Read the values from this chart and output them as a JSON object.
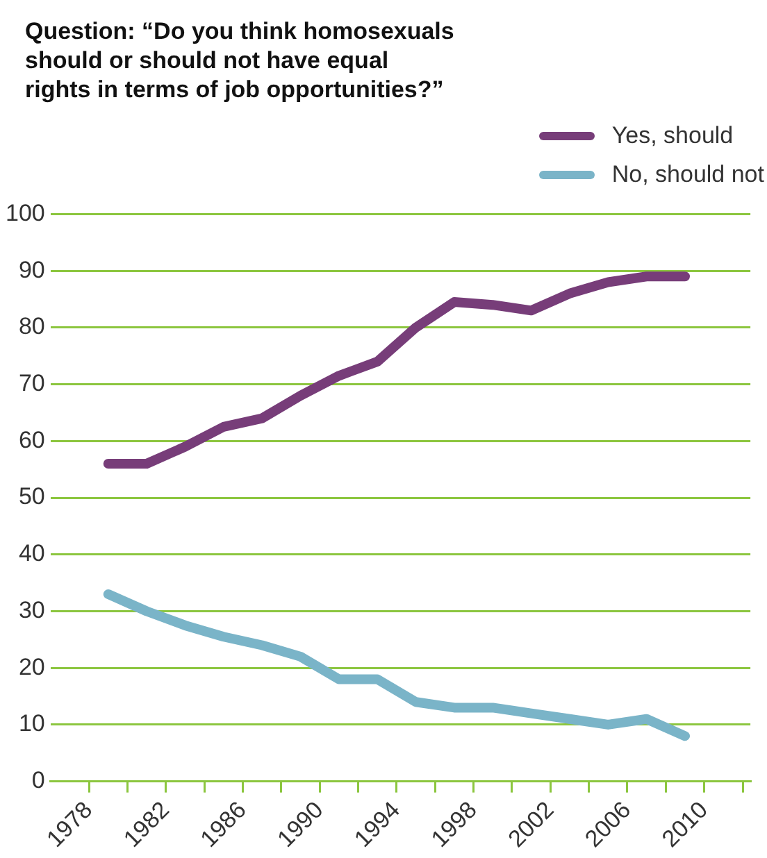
{
  "chart_data": {
    "type": "line",
    "title": "Question: “Do you think homosexuals should or should not have equal rights in terms of job opportunities?”",
    "x": [
      1979,
      1981,
      1983,
      1985,
      1987,
      1989,
      1991,
      1993,
      1995,
      1997,
      1999,
      2001,
      2003,
      2005,
      2007,
      2009
    ],
    "series": [
      {
        "name": "Yes, should",
        "color": "#773d79",
        "values": [
          56,
          56,
          59,
          62.5,
          64,
          68,
          71.5,
          74,
          80,
          84.5,
          84,
          83,
          86,
          88,
          89,
          89
        ]
      },
      {
        "name": "No, should not",
        "color": "#7ab4c8",
        "values": [
          33,
          30,
          27.5,
          25.5,
          24,
          22,
          18,
          18,
          14,
          13,
          13,
          12,
          11,
          10,
          11,
          8
        ]
      }
    ],
    "xlim": [
      1976,
      2012.4
    ],
    "xticks": [
      1978,
      {
        "value": 1980,
        "label": null
      },
      1982,
      {
        "value": 1984,
        "label": null
      },
      1986,
      {
        "value": 1988,
        "label": null
      },
      1990,
      {
        "value": 1992,
        "label": null
      },
      1994,
      {
        "value": 1996,
        "label": null
      },
      1998,
      {
        "value": 2000,
        "label": null
      },
      2002,
      {
        "value": 2004,
        "label": null
      },
      2006,
      {
        "value": 2008,
        "label": null
      },
      2010,
      {
        "value": 2012,
        "label": null
      }
    ],
    "ylim": [
      0,
      100
    ],
    "yticks": [
      0,
      10,
      20,
      30,
      40,
      50,
      60,
      70,
      80,
      90,
      100
    ],
    "grid": "y",
    "legend": "top right",
    "marker": "none",
    "line_style": "solid"
  }
}
